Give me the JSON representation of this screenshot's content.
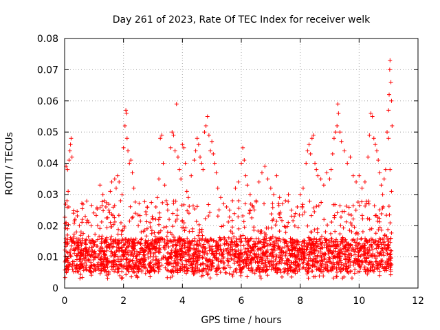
{
  "chart_data": {
    "type": "scatter",
    "title": "Day 261 of 2023, Rate Of TEC Index for receiver welk",
    "xlabel": "GPS time / hours",
    "ylabel": "ROTI / TECUs",
    "xlim": [
      0,
      12
    ],
    "ylim": [
      0,
      0.08
    ],
    "xticks": [
      0,
      2,
      4,
      6,
      8,
      10,
      12
    ],
    "yticks": [
      0,
      0.01,
      0.02,
      0.03,
      0.04,
      0.05,
      0.06,
      0.07,
      0.08
    ],
    "xtick_labels": [
      "0",
      "2",
      "4",
      "6",
      "8",
      "10",
      "12"
    ],
    "ytick_labels": [
      "0",
      "0.01",
      "0.02",
      "0.03",
      "0.04",
      "0.05",
      "0.06",
      "0.07",
      "0.08"
    ],
    "grid": true,
    "marker": "+",
    "marker_color": "#ff0000",
    "series": [
      {
        "name": "ROTI",
        "points": [
          [
            0.05,
            0.039
          ],
          [
            0.1,
            0.038
          ],
          [
            0.12,
            0.031
          ],
          [
            0.15,
            0.041
          ],
          [
            0.18,
            0.044
          ],
          [
            0.2,
            0.046
          ],
          [
            0.22,
            0.048
          ],
          [
            0.25,
            0.042
          ],
          [
            0.08,
            0.028
          ],
          [
            0.14,
            0.026
          ],
          [
            0.3,
            0.024
          ],
          [
            0.35,
            0.022
          ],
          [
            0.05,
            0.021
          ],
          [
            0.1,
            0.019
          ],
          [
            0.4,
            0.018
          ],
          [
            0.5,
            0.02
          ],
          [
            0.6,
            0.022
          ],
          [
            0.7,
            0.023
          ],
          [
            0.75,
            0.021
          ],
          [
            0.9,
            0.02
          ],
          [
            1.2,
            0.033
          ],
          [
            1.3,
            0.03
          ],
          [
            1.35,
            0.028
          ],
          [
            1.4,
            0.026
          ],
          [
            1.5,
            0.025
          ],
          [
            1.55,
            0.031
          ],
          [
            1.6,
            0.034
          ],
          [
            1.7,
            0.035
          ],
          [
            1.75,
            0.032
          ],
          [
            1.8,
            0.036
          ],
          [
            1.85,
            0.034
          ],
          [
            1.9,
            0.028
          ],
          [
            1.95,
            0.03
          ],
          [
            2.0,
            0.045
          ],
          [
            2.05,
            0.052
          ],
          [
            2.08,
            0.057
          ],
          [
            2.1,
            0.056
          ],
          [
            2.12,
            0.048
          ],
          [
            2.15,
            0.044
          ],
          [
            2.2,
            0.04
          ],
          [
            2.25,
            0.041
          ],
          [
            2.3,
            0.037
          ],
          [
            2.35,
            0.032
          ],
          [
            2.4,
            0.024
          ],
          [
            2.5,
            0.02
          ],
          [
            2.6,
            0.018
          ],
          [
            2.8,
            0.019
          ],
          [
            2.9,
            0.021
          ],
          [
            3.0,
            0.022
          ],
          [
            3.1,
            0.026
          ],
          [
            3.15,
            0.029
          ],
          [
            3.2,
            0.035
          ],
          [
            3.25,
            0.048
          ],
          [
            3.3,
            0.049
          ],
          [
            3.35,
            0.04
          ],
          [
            3.4,
            0.033
          ],
          [
            3.45,
            0.028
          ],
          [
            3.5,
            0.025
          ],
          [
            3.55,
            0.022
          ],
          [
            3.6,
            0.045
          ],
          [
            3.65,
            0.05
          ],
          [
            3.7,
            0.049
          ],
          [
            3.75,
            0.044
          ],
          [
            3.8,
            0.059
          ],
          [
            3.85,
            0.042
          ],
          [
            3.9,
            0.038
          ],
          [
            3.95,
            0.035
          ],
          [
            4.0,
            0.046
          ],
          [
            4.05,
            0.045
          ],
          [
            4.1,
            0.04
          ],
          [
            4.15,
            0.031
          ],
          [
            4.2,
            0.029
          ],
          [
            4.3,
            0.036
          ],
          [
            4.4,
            0.041
          ],
          [
            4.45,
            0.044
          ],
          [
            4.5,
            0.048
          ],
          [
            4.55,
            0.046
          ],
          [
            4.6,
            0.042
          ],
          [
            4.65,
            0.04
          ],
          [
            4.7,
            0.038
          ],
          [
            4.75,
            0.05
          ],
          [
            4.8,
            0.052
          ],
          [
            4.85,
            0.055
          ],
          [
            4.9,
            0.049
          ],
          [
            4.95,
            0.044
          ],
          [
            5.0,
            0.047
          ],
          [
            5.05,
            0.043
          ],
          [
            5.1,
            0.04
          ],
          [
            5.15,
            0.037
          ],
          [
            5.2,
            0.032
          ],
          [
            5.3,
            0.029
          ],
          [
            5.4,
            0.027
          ],
          [
            5.5,
            0.026
          ],
          [
            5.6,
            0.025
          ],
          [
            5.7,
            0.028
          ],
          [
            5.8,
            0.032
          ],
          [
            5.9,
            0.034
          ],
          [
            6.0,
            0.04
          ],
          [
            6.05,
            0.045
          ],
          [
            6.1,
            0.041
          ],
          [
            6.15,
            0.036
          ],
          [
            6.2,
            0.033
          ],
          [
            6.3,
            0.03
          ],
          [
            6.4,
            0.026
          ],
          [
            6.5,
            0.028
          ],
          [
            6.6,
            0.034
          ],
          [
            6.7,
            0.037
          ],
          [
            6.8,
            0.039
          ],
          [
            6.9,
            0.035
          ],
          [
            7.0,
            0.032
          ],
          [
            7.1,
            0.03
          ],
          [
            7.2,
            0.036
          ],
          [
            7.3,
            0.029
          ],
          [
            7.4,
            0.027
          ],
          [
            7.5,
            0.028
          ],
          [
            7.6,
            0.03
          ],
          [
            7.7,
            0.025
          ],
          [
            7.8,
            0.023
          ],
          [
            7.9,
            0.026
          ],
          [
            8.0,
            0.03
          ],
          [
            8.1,
            0.032
          ],
          [
            8.2,
            0.04
          ],
          [
            8.25,
            0.044
          ],
          [
            8.3,
            0.046
          ],
          [
            8.35,
            0.043
          ],
          [
            8.4,
            0.048
          ],
          [
            8.45,
            0.049
          ],
          [
            8.5,
            0.04
          ],
          [
            8.55,
            0.038
          ],
          [
            8.6,
            0.036
          ],
          [
            8.7,
            0.035
          ],
          [
            8.8,
            0.033
          ],
          [
            8.9,
            0.037
          ],
          [
            9.0,
            0.035
          ],
          [
            9.05,
            0.038
          ],
          [
            9.1,
            0.043
          ],
          [
            9.15,
            0.048
          ],
          [
            9.2,
            0.05
          ],
          [
            9.25,
            0.052
          ],
          [
            9.28,
            0.059
          ],
          [
            9.3,
            0.056
          ],
          [
            9.35,
            0.05
          ],
          [
            9.4,
            0.047
          ],
          [
            9.5,
            0.044
          ],
          [
            9.6,
            0.04
          ],
          [
            9.7,
            0.042
          ],
          [
            9.8,
            0.036
          ],
          [
            9.9,
            0.034
          ],
          [
            10.0,
            0.036
          ],
          [
            10.1,
            0.032
          ],
          [
            10.2,
            0.034
          ],
          [
            10.3,
            0.042
          ],
          [
            10.35,
            0.049
          ],
          [
            10.4,
            0.056
          ],
          [
            10.45,
            0.055
          ],
          [
            10.5,
            0.048
          ],
          [
            10.55,
            0.046
          ],
          [
            10.6,
            0.044
          ],
          [
            10.65,
            0.041
          ],
          [
            10.7,
            0.037
          ],
          [
            10.75,
            0.033
          ],
          [
            10.8,
            0.03
          ],
          [
            10.85,
            0.035
          ],
          [
            10.9,
            0.038
          ],
          [
            10.95,
            0.05
          ],
          [
            11.0,
            0.057
          ],
          [
            11.02,
            0.062
          ],
          [
            11.04,
            0.07
          ],
          [
            11.05,
            0.073
          ],
          [
            11.08,
            0.066
          ],
          [
            11.1,
            0.06
          ],
          [
            11.12,
            0.052
          ],
          [
            11.0,
            0.048
          ],
          [
            11.05,
            0.038
          ],
          [
            11.1,
            0.031
          ]
        ],
        "dense_band": {
          "description": "dense cloud of points across the whole range",
          "x_range": [
            0,
            11.1
          ],
          "y_core": [
            0.005,
            0.016
          ],
          "y_extended": [
            0.003,
            0.028
          ]
        }
      }
    ]
  }
}
